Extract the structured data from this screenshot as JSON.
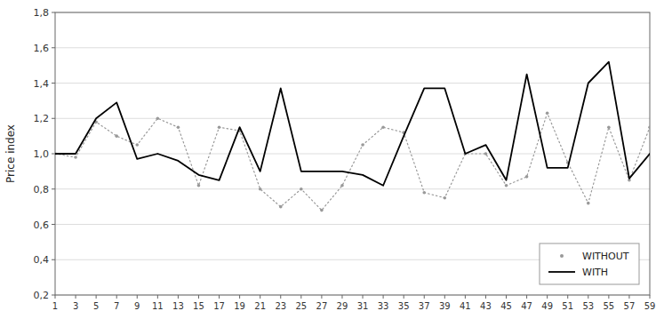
{
  "chart_data": {
    "type": "line",
    "y_label": "Price index",
    "x": [
      1,
      3,
      5,
      7,
      9,
      11,
      13,
      15,
      17,
      19,
      21,
      23,
      25,
      27,
      29,
      31,
      33,
      35,
      37,
      39,
      41,
      43,
      45,
      47,
      49,
      51,
      53,
      55,
      57,
      59
    ],
    "series": [
      {
        "name": "WITHOUT",
        "color": "#999999",
        "line_style": "dotted",
        "marker": "point",
        "values": [
          1.0,
          0.98,
          1.18,
          1.1,
          1.05,
          1.2,
          1.15,
          0.82,
          1.15,
          1.13,
          0.8,
          0.7,
          0.8,
          0.68,
          0.82,
          1.05,
          1.15,
          1.12,
          0.78,
          0.75,
          1.0,
          1.0,
          0.82,
          0.87,
          1.23,
          0.95,
          0.72,
          1.15,
          0.85,
          1.15
        ]
      },
      {
        "name": "WITH",
        "color": "#000000",
        "line_style": "solid",
        "values": [
          1.0,
          1.0,
          1.2,
          1.29,
          0.97,
          1.0,
          0.96,
          0.88,
          0.85,
          1.15,
          0.9,
          1.37,
          0.9,
          0.9,
          0.9,
          0.88,
          0.82,
          1.1,
          1.37,
          1.37,
          1.0,
          1.05,
          0.85,
          1.45,
          0.92,
          0.92,
          1.4,
          1.52,
          0.86,
          1.0
        ]
      }
    ],
    "xlim": [
      1,
      59
    ],
    "xticks": [
      1,
      3,
      5,
      7,
      9,
      11,
      13,
      15,
      17,
      19,
      21,
      23,
      25,
      27,
      29,
      31,
      33,
      35,
      37,
      39,
      41,
      43,
      45,
      47,
      49,
      51,
      53,
      55,
      57,
      59
    ],
    "ylim": [
      0.2,
      1.8
    ],
    "yticks": [
      {
        "value": 0.2,
        "label": "0,2"
      },
      {
        "value": 0.4,
        "label": "0,4"
      },
      {
        "value": 0.6,
        "label": "0,6"
      },
      {
        "value": 0.8,
        "label": "0,8"
      },
      {
        "value": 1.0,
        "label": "1,0"
      },
      {
        "value": 1.2,
        "label": "1,2"
      },
      {
        "value": 1.4,
        "label": "1,4"
      },
      {
        "value": 1.6,
        "label": "1,6"
      },
      {
        "value": 1.8,
        "label": "1,8"
      }
    ],
    "grid": "y",
    "legend": "lower right"
  }
}
